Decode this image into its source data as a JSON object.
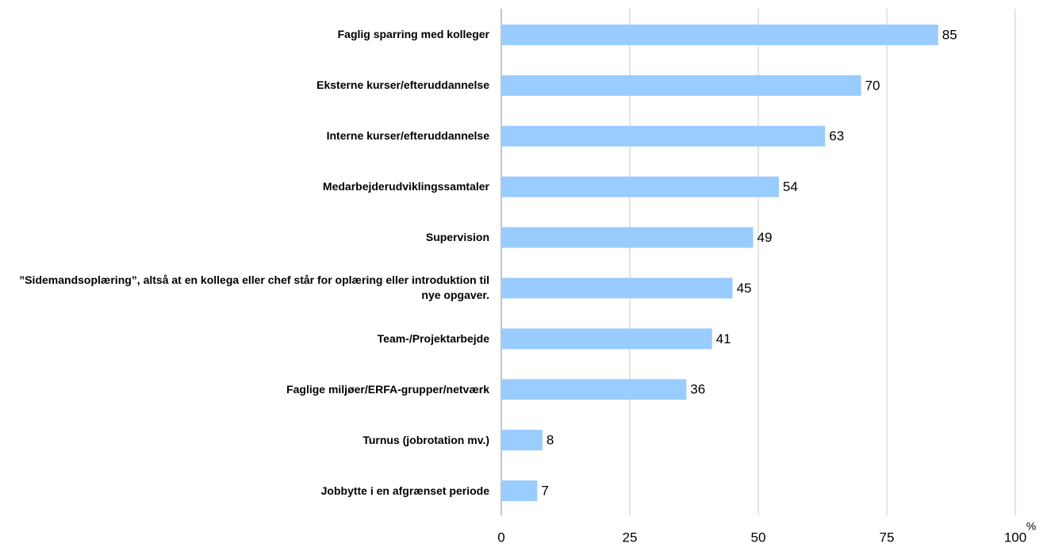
{
  "chart_data": {
    "type": "bar",
    "orientation": "horizontal",
    "categories": [
      "Faglig sparring med kolleger",
      "Eksterne kurser/efteruddannelse",
      "Interne kurser/efteruddannelse",
      "Medarbejderudviklingssamtaler",
      "Supervision",
      "”Sidemandsoplæring”, altså at en kollega eller chef står for oplæring eller introduktion til nye opgaver.",
      "Team-/Projektarbejde",
      "Faglige miljøer/ERFA-grupper/netværk",
      "Turnus (jobrotation mv.)",
      "Jobbytte i en afgrænset periode"
    ],
    "values": [
      85,
      70,
      63,
      54,
      49,
      45,
      41,
      36,
      8,
      7
    ],
    "color": "#99ccff",
    "xlim": [
      0,
      100
    ],
    "xticks": [
      0,
      25,
      50,
      75,
      100
    ],
    "x_unit": "%",
    "grid": true
  }
}
